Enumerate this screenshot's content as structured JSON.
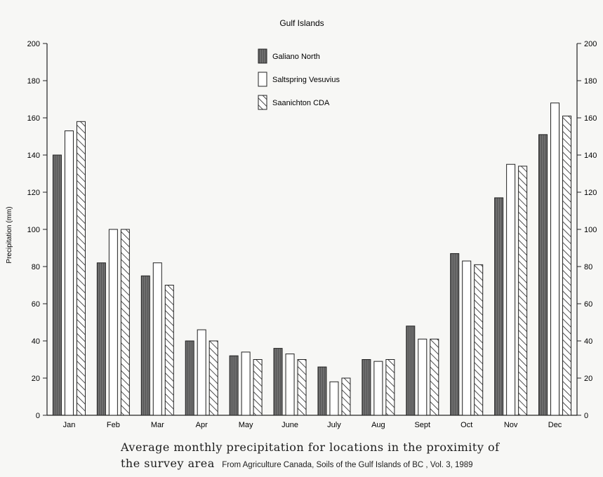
{
  "chart_data": {
    "type": "bar",
    "title": "Gulf Islands",
    "ylabel": "Precipitation (mm)",
    "xlabel": "",
    "ylim": [
      0,
      200
    ],
    "yticks": [
      0,
      20,
      40,
      60,
      80,
      100,
      120,
      140,
      160,
      180,
      200
    ],
    "categories": [
      "Jan",
      "Feb",
      "Mar",
      "Apr",
      "May",
      "June",
      "July",
      "Aug",
      "Sept",
      "Oct",
      "Nov",
      "Dec"
    ],
    "series": [
      {
        "name": "Galiano North",
        "pattern": "dark-shaded",
        "color": "#6b6b6b",
        "values": [
          140,
          82,
          75,
          40,
          32,
          36,
          26,
          30,
          48,
          87,
          117,
          151
        ]
      },
      {
        "name": "Saltspring Vesuvius",
        "pattern": "white",
        "color": "#ffffff",
        "values": [
          153,
          100,
          82,
          46,
          34,
          33,
          18,
          29,
          41,
          83,
          135,
          168
        ]
      },
      {
        "name": "Saanichton CDA",
        "pattern": "diagonal-hatch",
        "color": "#ffffff",
        "values": [
          158,
          100,
          70,
          40,
          30,
          30,
          20,
          30,
          41,
          81,
          134,
          161
        ]
      }
    ],
    "legend": "top-center",
    "grid": false,
    "right_axis": true
  },
  "caption": {
    "line1": "Average monthly precipitation for locations in the proximity of",
    "line2": "the survey area",
    "source": "From Agriculture Canada, Soils of the Gulf Islands of BC , Vol. 3, 1989"
  }
}
